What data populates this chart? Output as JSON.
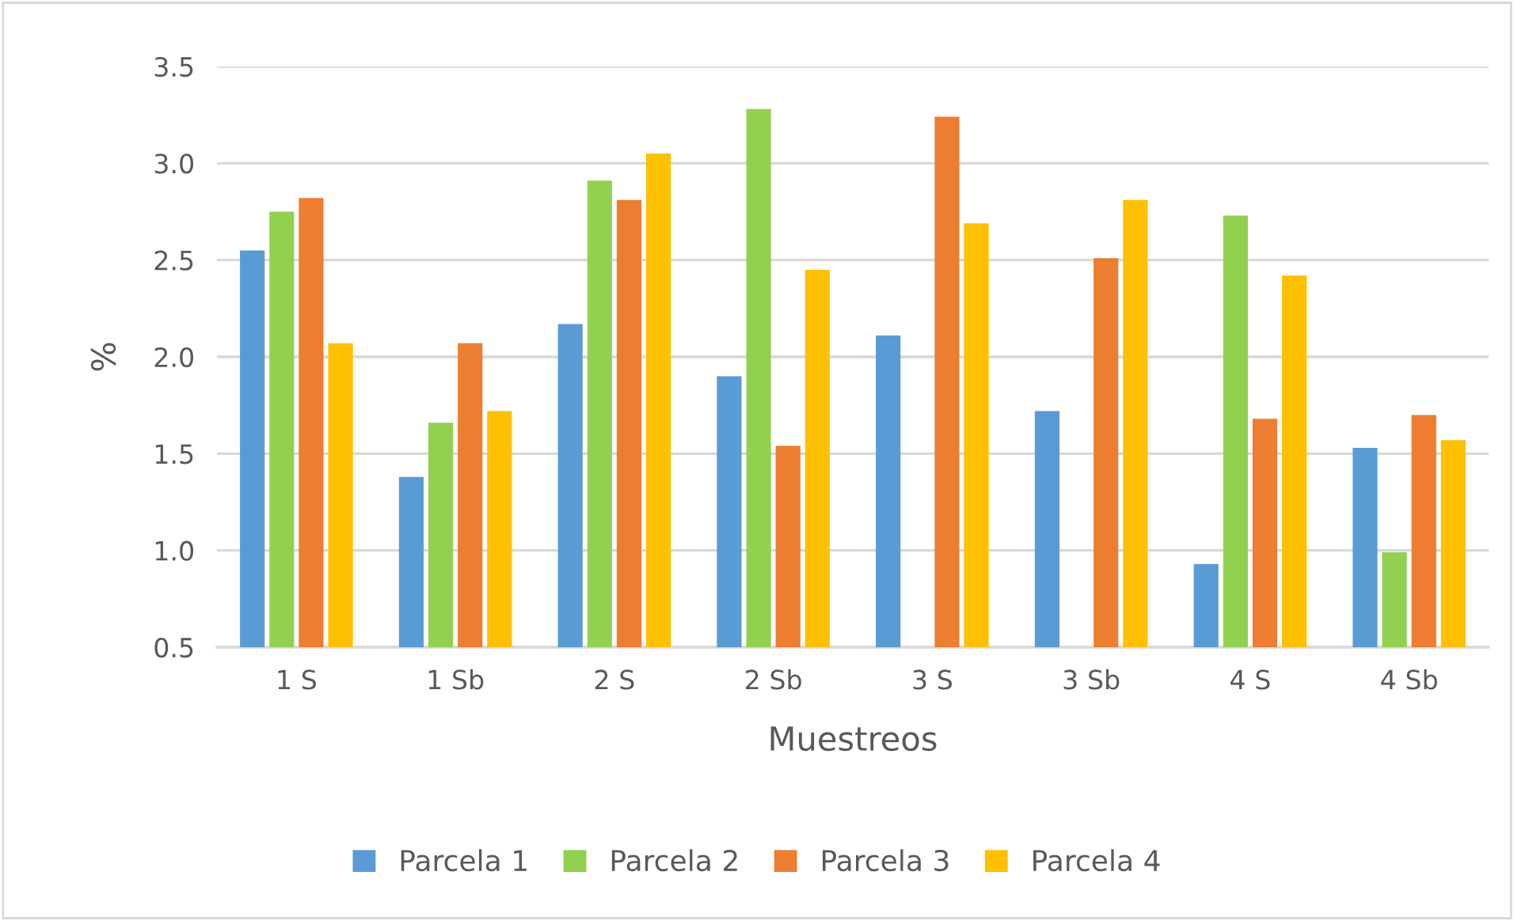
{
  "chart_data": {
    "type": "bar",
    "xlabel": "Muestreos",
    "ylabel": "%",
    "categories": [
      "1 S",
      "1 Sb",
      "2 S",
      "2 Sb",
      "3 S",
      "3 Sb",
      "4 S",
      "4 Sb"
    ],
    "series": [
      {
        "name": "Parcela 1",
        "color": "#5b9bd5",
        "values": [
          2.55,
          1.38,
          2.17,
          1.9,
          2.11,
          1.72,
          0.93,
          1.53
        ]
      },
      {
        "name": "Parcela 2",
        "color": "#92d050",
        "values": [
          2.75,
          1.66,
          2.91,
          3.28,
          null,
          null,
          2.73,
          0.99
        ]
      },
      {
        "name": "Parcela 3",
        "color": "#ed7d31",
        "values": [
          2.82,
          2.07,
          2.81,
          1.54,
          3.24,
          2.51,
          1.68,
          1.7
        ]
      },
      {
        "name": "Parcela 4",
        "color": "#ffc000",
        "values": [
          2.07,
          1.72,
          3.05,
          2.45,
          2.69,
          2.81,
          2.42,
          1.57
        ]
      }
    ],
    "ylim": [
      0.5,
      3.5
    ],
    "yticks": [
      0.5,
      {
        "value": 1,
        "label": "1.0"
      },
      1.5,
      {
        "value": 2,
        "label": "2.0"
      },
      2.5,
      {
        "value": 3,
        "label": "3.0"
      },
      3.5
    ],
    "grid": "y",
    "legend": "bottom"
  }
}
